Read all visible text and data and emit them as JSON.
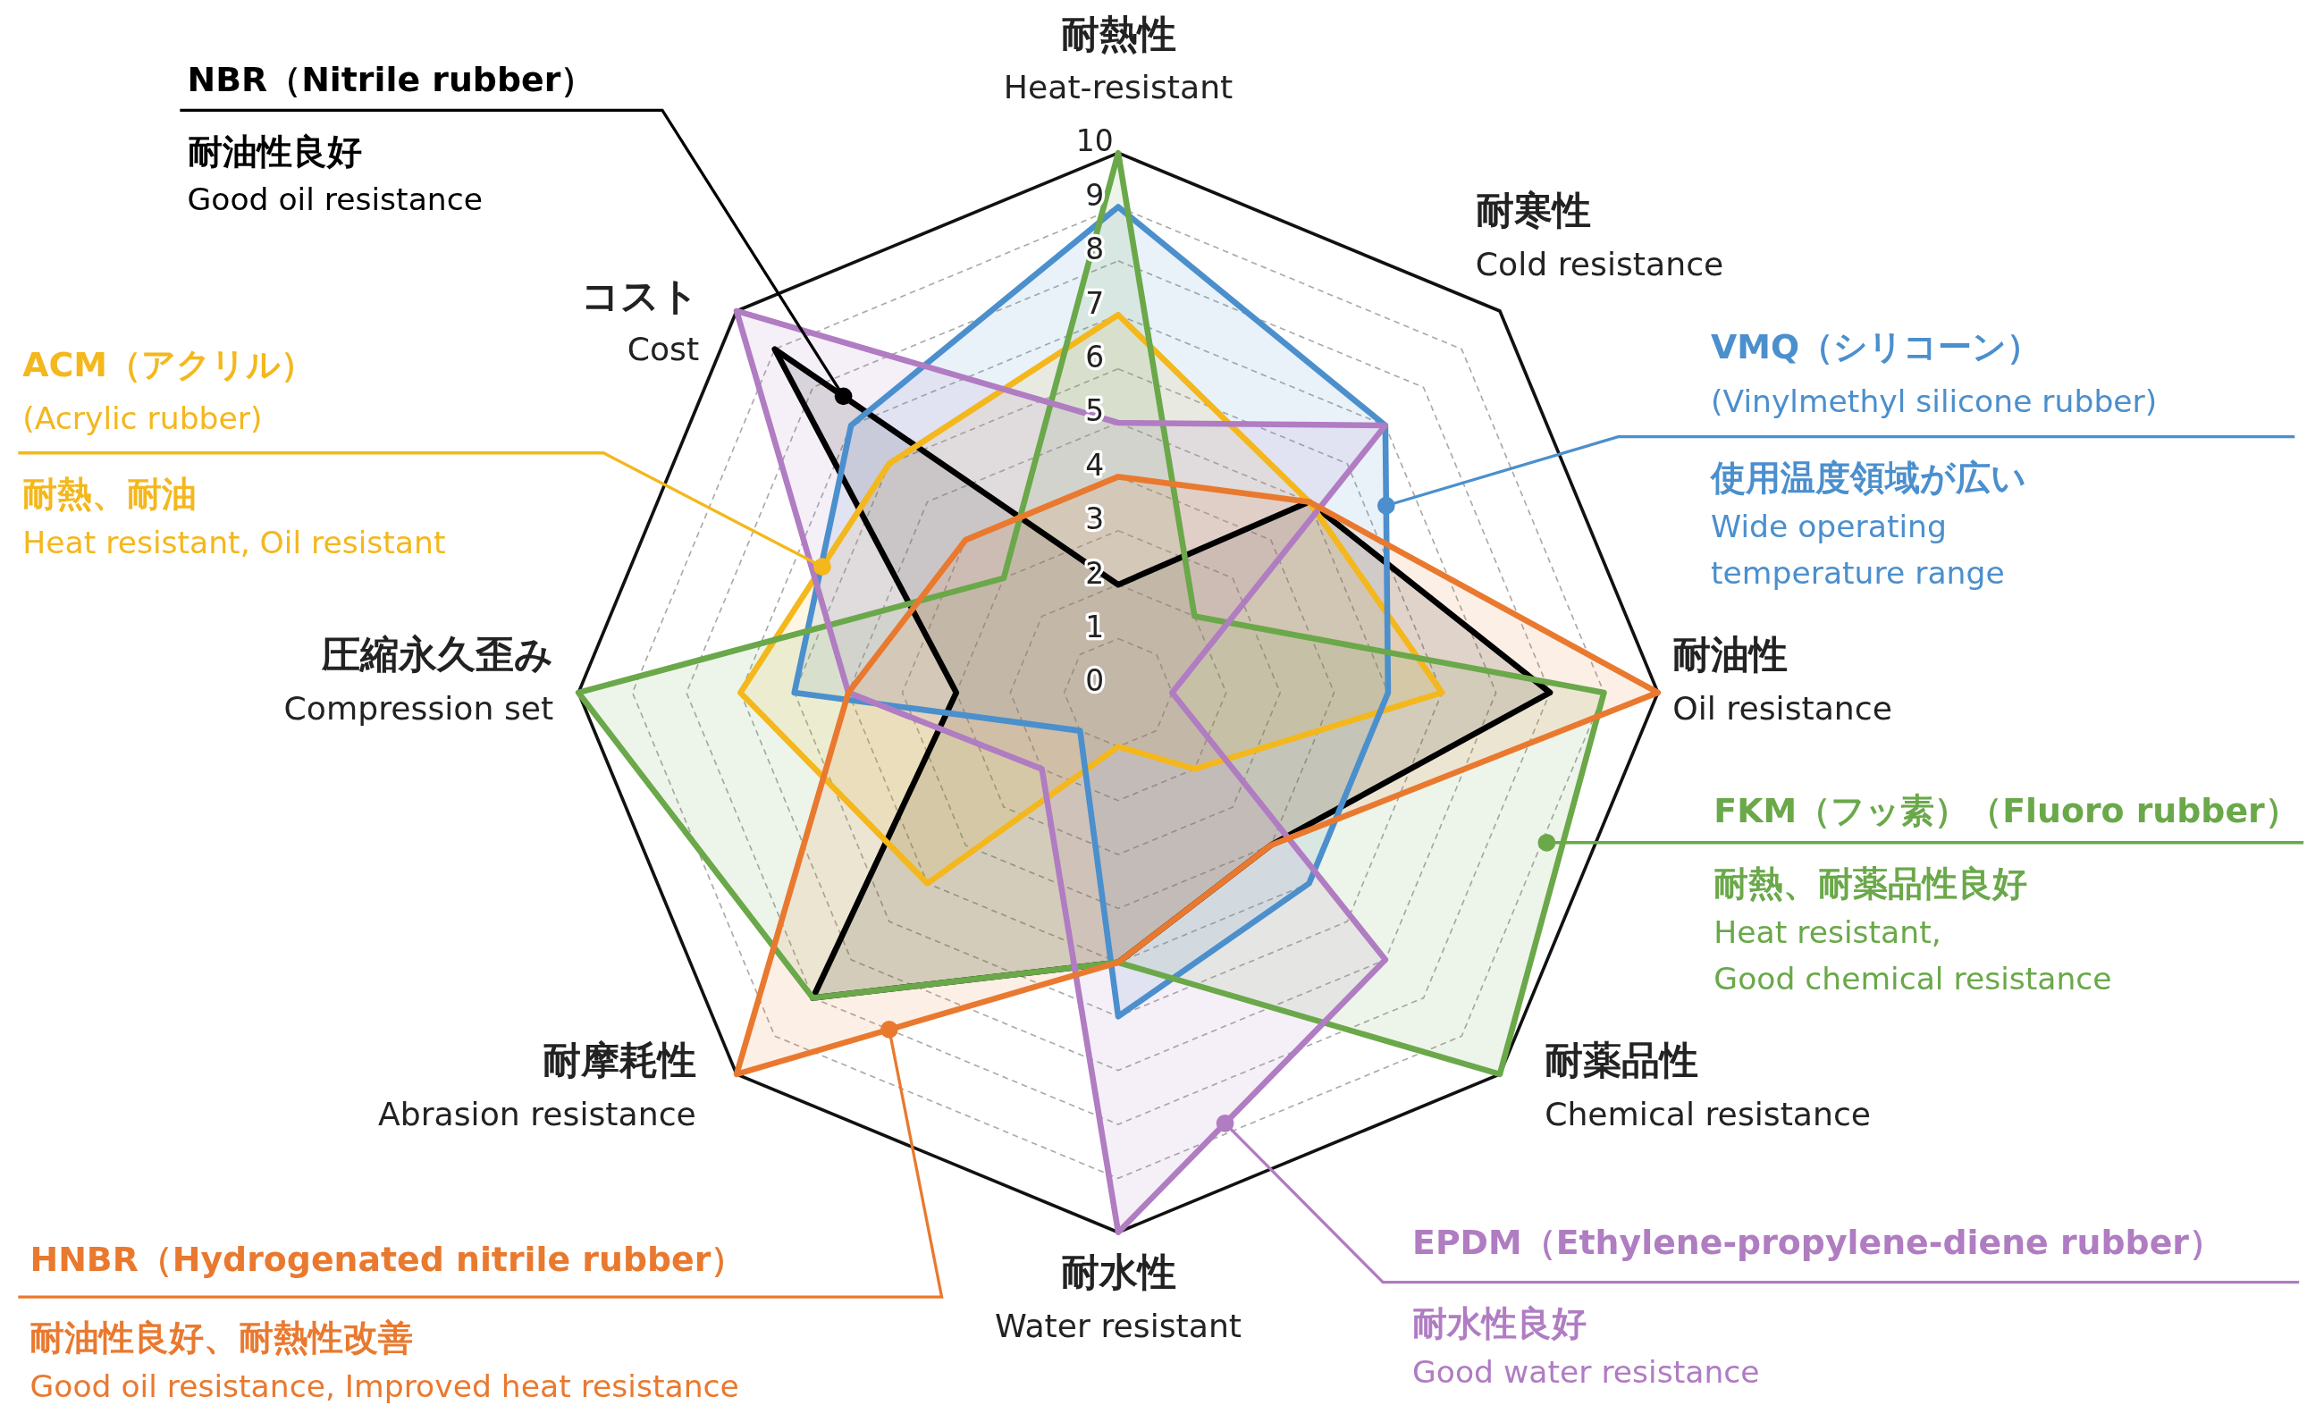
{
  "chart_data": {
    "type": "radar",
    "categories": [
      "耐熱性\nHeat-resistant",
      "耐寒性\nCold resistance",
      "耐油性\nOil resistance",
      "耐薬品性\nChemical resistance",
      "耐水性\nWater resistant",
      "耐摩耗性\nAbrasion resistance",
      "圧縮永久歪み\nCompression set",
      "コスト\nCost"
    ],
    "series": [
      {
        "name": "NBR（Nitrile rubber）",
        "color": "#000000",
        "values": [
          2,
          5,
          8,
          4,
          5,
          8,
          3,
          9
        ]
      },
      {
        "name": "ACM（アクリル）\n(Acrylic rubber)",
        "color": "#f4b71c",
        "values": [
          7,
          5,
          6,
          2,
          1,
          5,
          7,
          6
        ]
      },
      {
        "name": "VMQ（シリコーン）\n(Vinylmethyl silicone rubber)",
        "color": "#4b8fcd",
        "values": [
          9,
          7,
          5,
          5,
          6,
          1,
          6,
          7
        ]
      },
      {
        "name": "FKM（フッ素）（Fluoro rubber）",
        "color": "#6aa84a",
        "values": [
          10,
          2,
          9,
          10,
          5,
          8,
          10,
          3
        ]
      },
      {
        "name": "EPDM（Ethylene-propylene-diene rubber）",
        "color": "#b07cc2",
        "values": [
          5,
          7,
          1,
          7,
          10,
          2,
          5,
          10
        ]
      },
      {
        "name": "HNBR（Hydrogenated nitrile rubber）",
        "color": "#e9792f",
        "values": [
          4,
          5,
          10,
          4,
          5,
          10,
          5,
          4
        ]
      }
    ],
    "ylim": [
      0,
      10
    ],
    "yticks": [
      0,
      1,
      2,
      3,
      4,
      5,
      6,
      7,
      8,
      9,
      10
    ],
    "grid": true,
    "annotations": [
      "耐油性良好\nGood oil resistance",
      "耐熱、耐油\nHeat resistant, Oil resistant",
      "使用温度領域が広い\nWide operating\ntemperature range",
      "耐熱、耐薬品性良好\nHeat resistant,\nGood chemical resistance",
      "耐水性良好\nGood water resistance",
      "耐油性良好、耐熱性改善\nGood oil resistance, Improved heat resistance"
    ]
  }
}
